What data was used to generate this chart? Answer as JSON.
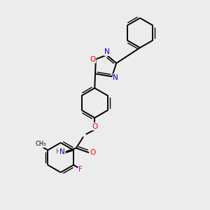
{
  "background_color": "#ececec",
  "bond_color": "#000000",
  "atom_colors": {
    "N": "#0000cd",
    "O": "#ff0000",
    "F": "#cc00cc",
    "C": "#000000",
    "H": "#555555"
  },
  "figsize": [
    3.0,
    3.0
  ],
  "dpi": 100
}
